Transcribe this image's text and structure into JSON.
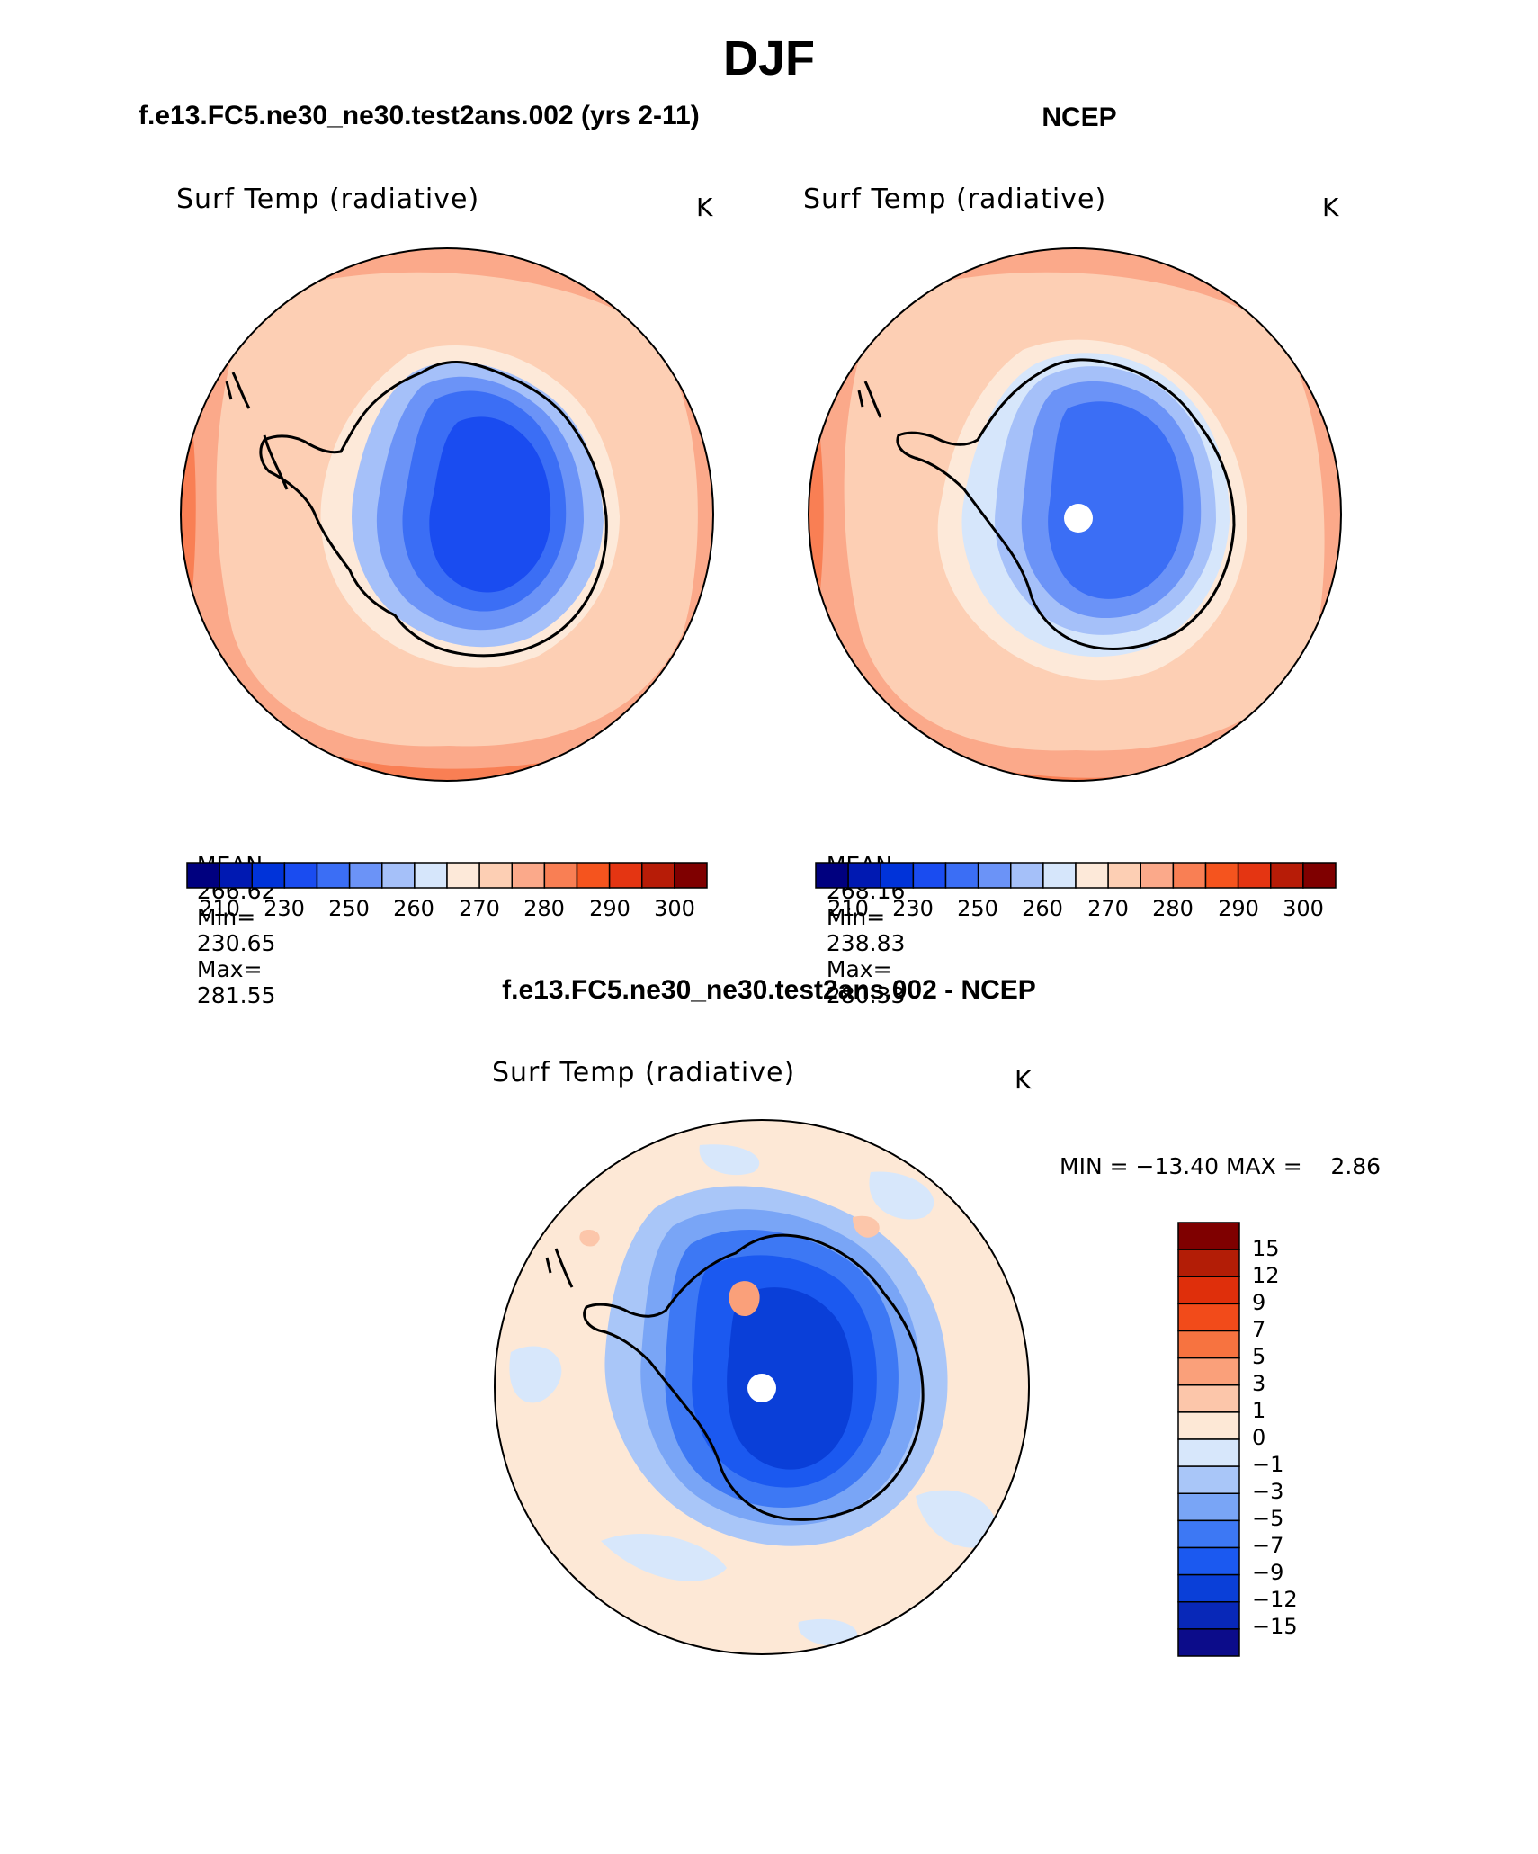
{
  "page": {
    "title": "DJF"
  },
  "palettes": {
    "temp": [
      "#00007f",
      "#0019b2",
      "#0033d9",
      "#1a4cf0",
      "#3b6ef5",
      "#6b93f7",
      "#a5c0f9",
      "#d6e6fb",
      "#fde9d9",
      "#fdcfb4",
      "#fba98a",
      "#f97f54",
      "#f5541e",
      "#e43512",
      "#b71c07",
      "#7f0000"
    ],
    "diff": [
      "#0c0c8a",
      "#0828b8",
      "#0a3fd8",
      "#1b59f0",
      "#3d78f4",
      "#79a5f6",
      "#a9c6f8",
      "#d7e7fb",
      "#fde8d6",
      "#fcc6aa",
      "#faa07a",
      "#f77340",
      "#f24b1a",
      "#df2f0b",
      "#b31d06",
      "#7f0000"
    ]
  },
  "panels": [
    {
      "case_title": "f.e13.FC5.ne30_ne30.test2ans.002 (yrs 2-11)",
      "variable_label": "Surf Temp (radiative)",
      "units_label": "K",
      "stats": {
        "mean_label": "MEAN=",
        "mean": "266.62",
        "min_label": "Min=",
        "min": "230.65",
        "max_label": "Max=",
        "max": "281.55"
      },
      "colorbar_ticks": [
        "210",
        "230",
        "250",
        "260",
        "270",
        "280",
        "290",
        "300"
      ]
    },
    {
      "case_title": "NCEP",
      "variable_label": "Surf Temp (radiative)",
      "units_label": "K",
      "stats": {
        "mean_label": "MEAN=",
        "mean": "268.16",
        "min_label": "Min=",
        "min": "238.83",
        "max_label": "Max=",
        "max": "280.33"
      },
      "colorbar_ticks": [
        "210",
        "230",
        "250",
        "260",
        "270",
        "280",
        "290",
        "300"
      ]
    }
  ],
  "difference": {
    "case_title": "f.e13.FC5.ne30_ne30.test2ans.002 - NCEP",
    "variable_label": "Surf Temp (radiative)",
    "units_label": "K",
    "minmax_text": "MIN = −13.40 MAX =    2.86",
    "colorbar_ticks": [
      "15",
      "12",
      "9",
      "7",
      "5",
      "3",
      "1",
      "0",
      "−1",
      "−3",
      "−5",
      "−7",
      "−9",
      "−12",
      "−15"
    ]
  }
}
